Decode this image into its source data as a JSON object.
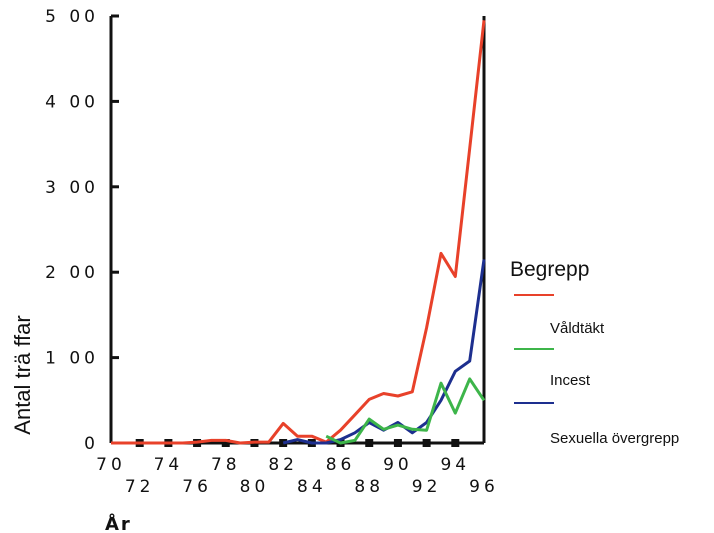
{
  "chart_data": {
    "type": "line",
    "xlabel": "År",
    "ylabel": "Antal trä ffar",
    "x_ticks_top": [
      "70",
      "74",
      "78",
      "82",
      "86",
      "90",
      "94"
    ],
    "x_ticks_bottom": [
      "72",
      "76",
      "80",
      "84",
      "88",
      "92",
      "96"
    ],
    "y_ticks": [
      "0",
      "1 00",
      "2 00",
      "3 00",
      "4 00",
      "5 00"
    ],
    "xlim": [
      1970,
      1996
    ],
    "ylim": [
      0,
      500
    ],
    "grid": false,
    "legend_position": "right",
    "x": [
      1970,
      1971,
      1972,
      1973,
      1974,
      1975,
      1976,
      1977,
      1978,
      1979,
      1980,
      1981,
      1982,
      1983,
      1984,
      1985,
      1986,
      1987,
      1988,
      1989,
      1990,
      1991,
      1992,
      1993,
      1994,
      1995,
      1996
    ],
    "series": [
      {
        "name": "",
        "color": "#e8412a",
        "values": [
          0,
          0,
          0,
          0,
          0,
          0,
          1,
          3,
          3,
          0,
          1,
          1,
          23,
          8,
          8,
          1,
          15,
          33,
          51,
          58,
          55,
          60,
          135,
          222,
          195,
          345,
          495
        ]
      },
      {
        "name": "",
        "color": "#1d2f8f",
        "values": [
          null,
          null,
          null,
          null,
          null,
          null,
          null,
          null,
          null,
          null,
          null,
          null,
          0,
          4,
          0,
          0,
          4,
          12,
          24,
          15,
          24,
          12,
          24,
          50,
          84,
          96,
          215
        ]
      },
      {
        "name": "",
        "color": "#3db54a",
        "values": [
          null,
          null,
          null,
          null,
          null,
          null,
          null,
          null,
          null,
          null,
          null,
          null,
          null,
          null,
          null,
          8,
          0,
          3,
          28,
          16,
          21,
          16,
          15,
          70,
          35,
          75,
          50
        ]
      }
    ]
  },
  "legend": {
    "title": "Begrepp",
    "items": [
      {
        "label": "Våldtäkt",
        "color": "#e8412a"
      },
      {
        "label": "Incest",
        "color": "#3db54a"
      },
      {
        "label": "Sexuella övergrepp",
        "color": "#1d2f8f"
      }
    ]
  }
}
